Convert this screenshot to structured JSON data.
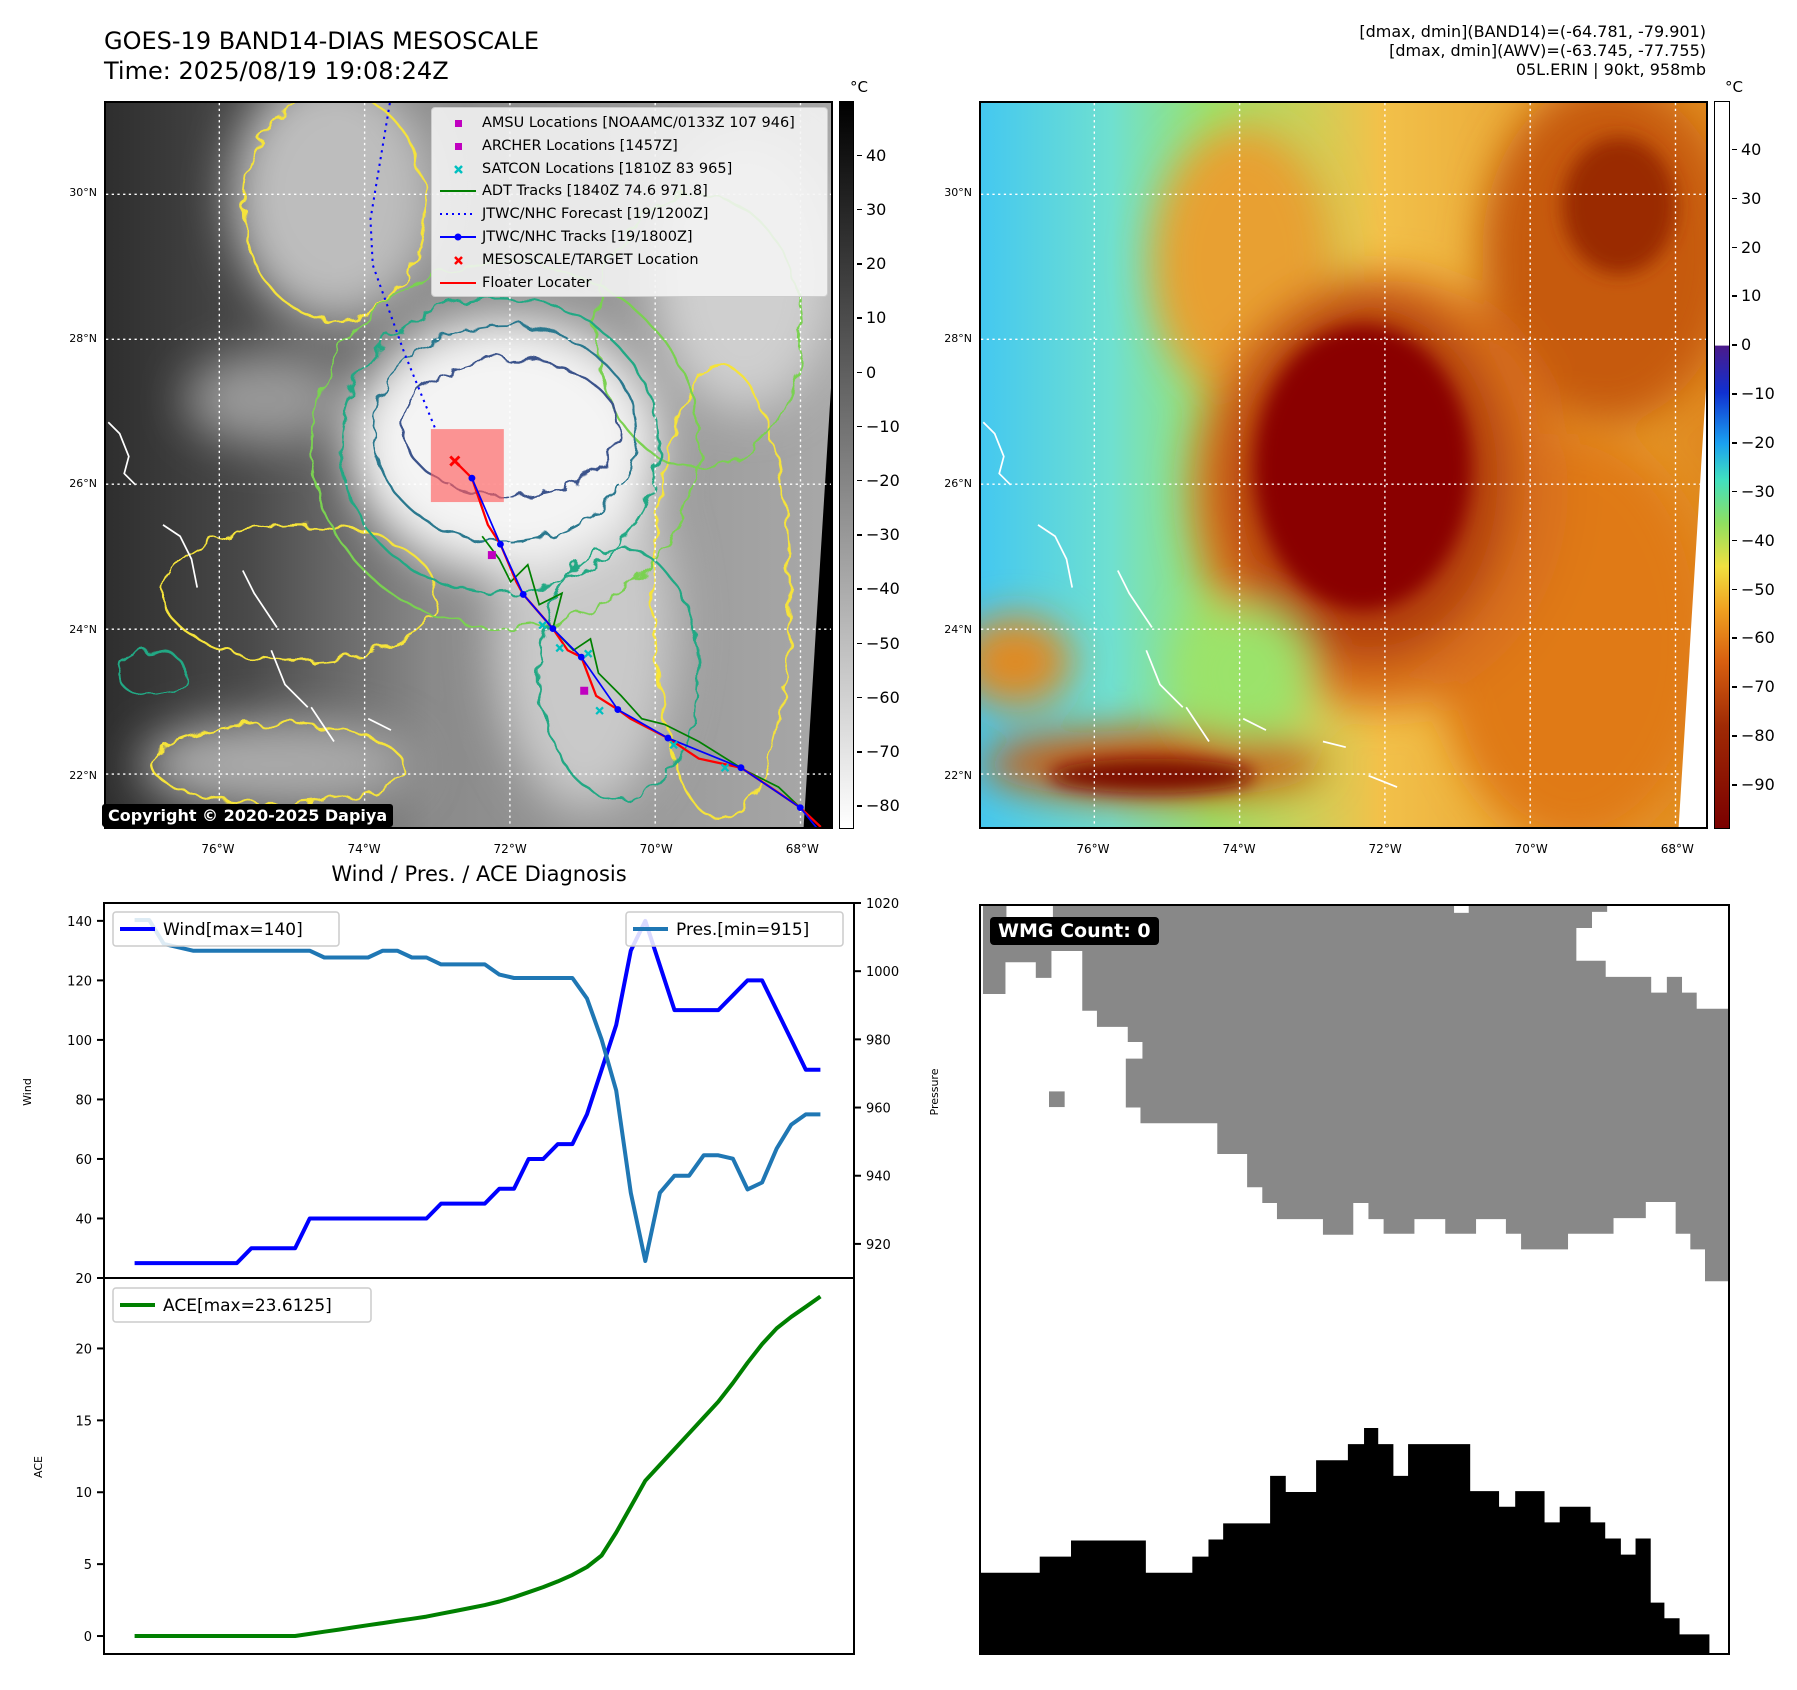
{
  "header": {
    "title_line1": "GOES-19 BAND14-DIAS MESOSCALE",
    "title_line2": "Time: 2025/08/19 19:08:24Z",
    "info_line1": "[dmax, dmin](BAND14)=(-64.781, -79.901)",
    "info_line2": "[dmax, dmin](AWV)=(-63.745, -77.755)",
    "info_line3": "05L.ERIN | 90kt, 958mb"
  },
  "map": {
    "extent": {
      "lon": [
        -77.56,
        -67.58
      ],
      "lat": [
        21.27,
        31.26
      ]
    },
    "lat_ticks": [
      {
        "value": 22,
        "label": "22°N"
      },
      {
        "value": 24,
        "label": "24°N"
      },
      {
        "value": 26,
        "label": "26°N"
      },
      {
        "value": 28,
        "label": "28°N"
      },
      {
        "value": 30,
        "label": "30°N"
      }
    ],
    "lon_ticks": [
      {
        "value": -76,
        "label": "76°W"
      },
      {
        "value": -74,
        "label": "74°W"
      },
      {
        "value": -72,
        "label": "72°W"
      },
      {
        "value": -70,
        "label": "70°W"
      },
      {
        "value": -68,
        "label": "68°W"
      }
    ],
    "copyright": "Copyright © 2020-2025 Dapiya",
    "legend": [
      {
        "label": "AMSU Locations [NOAAMC/0133Z 107 946]",
        "color": "#c000c0",
        "marker": "square"
      },
      {
        "label": "ARCHER Locations [1457Z]",
        "color": "#c000c0",
        "marker": "square"
      },
      {
        "label": "SATCON Locations [1810Z 83 965]",
        "color": "#00c0c0",
        "marker": "x"
      },
      {
        "label": "ADT Tracks [1840Z 74.6 971.8]",
        "color": "#008000",
        "marker": "line"
      },
      {
        "label": "JTWC/NHC Forecast [19/1200Z]",
        "color": "#0000ff",
        "marker": "dotted"
      },
      {
        "label": "JTWC/NHC Tracks [19/1800Z]",
        "color": "#0000ff",
        "marker": "line-dot"
      },
      {
        "label": "MESOSCALE/TARGET Location",
        "color": "#ff0000",
        "marker": "x"
      },
      {
        "label": "Floater Locater",
        "color": "#ff0000",
        "marker": "line"
      }
    ]
  },
  "colorbar_left": {
    "unit": "°C",
    "range": [
      -84.2,
      50.1
    ],
    "ticks": [
      {
        "v": 40,
        "l": "40"
      },
      {
        "v": 30,
        "l": "30"
      },
      {
        "v": 20,
        "l": "20"
      },
      {
        "v": 10,
        "l": "10"
      },
      {
        "v": 0,
        "l": "0"
      },
      {
        "v": -10,
        "l": "−10"
      },
      {
        "v": -20,
        "l": "−20"
      },
      {
        "v": -30,
        "l": "−30"
      },
      {
        "v": -40,
        "l": "−40"
      },
      {
        "v": -50,
        "l": "−50"
      },
      {
        "v": -60,
        "l": "−60"
      },
      {
        "v": -70,
        "l": "−70"
      },
      {
        "v": -80,
        "l": "−80"
      }
    ]
  },
  "colorbar_right": {
    "unit": "°C",
    "range": [
      -99,
      50
    ],
    "ticks": [
      {
        "v": 40,
        "l": "40"
      },
      {
        "v": 30,
        "l": "30"
      },
      {
        "v": 20,
        "l": "20"
      },
      {
        "v": 10,
        "l": "10"
      },
      {
        "v": 0,
        "l": "0"
      },
      {
        "v": -10,
        "l": "−10"
      },
      {
        "v": -20,
        "l": "−20"
      },
      {
        "v": -30,
        "l": "−30"
      },
      {
        "v": -40,
        "l": "−40"
      },
      {
        "v": -50,
        "l": "−50"
      },
      {
        "v": -60,
        "l": "−60"
      },
      {
        "v": -70,
        "l": "−70"
      },
      {
        "v": -80,
        "l": "−80"
      },
      {
        "v": -90,
        "l": "−90"
      }
    ]
  },
  "wmg": {
    "label": "WMG Count: 0"
  },
  "chart_data": [
    {
      "type": "line",
      "title": "Wind / Pres. / ACE Diagnosis",
      "ylabel": "Wind",
      "y2label": "Pressure",
      "xlim": [
        -2.1,
        49.3
      ],
      "ylim": [
        20,
        146
      ],
      "y2lim": [
        910,
        1020
      ],
      "yticks": [
        20,
        40,
        60,
        80,
        100,
        120,
        140
      ],
      "y2ticks": [
        920,
        940,
        960,
        980,
        1000,
        1020
      ],
      "grid": false,
      "series": [
        {
          "name": "Wind[max=140]",
          "axis": "left",
          "color": "#0000ff",
          "values": [
            25,
            25,
            25,
            25,
            25,
            25,
            25,
            25,
            30,
            30,
            30,
            30,
            40,
            40,
            40,
            40,
            40,
            40,
            40,
            40,
            40,
            45,
            45,
            45,
            45,
            50,
            50,
            60,
            60,
            65,
            65,
            75,
            90,
            105,
            130,
            140,
            125,
            110,
            110,
            110,
            110,
            115,
            120,
            120,
            110,
            100,
            90,
            90
          ]
        },
        {
          "name": "Pres.[min=915]",
          "axis": "right",
          "color": "#1f77b4",
          "values": [
            1015,
            1015,
            1008,
            1007,
            1006,
            1006,
            1006,
            1006,
            1006,
            1006,
            1006,
            1006,
            1006,
            1004,
            1004,
            1004,
            1004,
            1006,
            1006,
            1004,
            1004,
            1002,
            1002,
            1002,
            1002,
            999,
            998,
            998,
            998,
            998,
            998,
            992,
            980,
            965,
            935,
            915,
            935,
            940,
            940,
            946,
            946,
            945,
            936,
            938,
            948,
            955,
            958,
            958
          ]
        }
      ],
      "legend": [
        "top-left",
        "top-right"
      ]
    },
    {
      "type": "line",
      "ylabel": "ACE",
      "xlim": [
        -2.1,
        49.3
      ],
      "ylim": [
        -1.25,
        24.9
      ],
      "yticks": [
        0,
        5,
        10,
        15,
        20
      ],
      "grid": false,
      "series": [
        {
          "name": "ACE[max=23.6125]",
          "color": "#008000",
          "values": [
            0,
            0,
            0,
            0,
            0,
            0,
            0,
            0,
            0,
            0,
            0,
            0,
            0.15,
            0.3,
            0.45,
            0.6,
            0.75,
            0.9,
            1.05,
            1.2,
            1.35,
            1.55,
            1.75,
            1.95,
            2.15,
            2.4,
            2.7,
            3.05,
            3.4,
            3.8,
            4.25,
            4.8,
            5.6,
            7.2,
            9.0,
            10.8,
            11.9,
            13.0,
            14.1,
            15.2,
            16.3,
            17.6,
            19.0,
            20.3,
            21.4,
            22.2,
            22.9,
            23.6125
          ]
        }
      ],
      "legend": "top-left"
    }
  ]
}
